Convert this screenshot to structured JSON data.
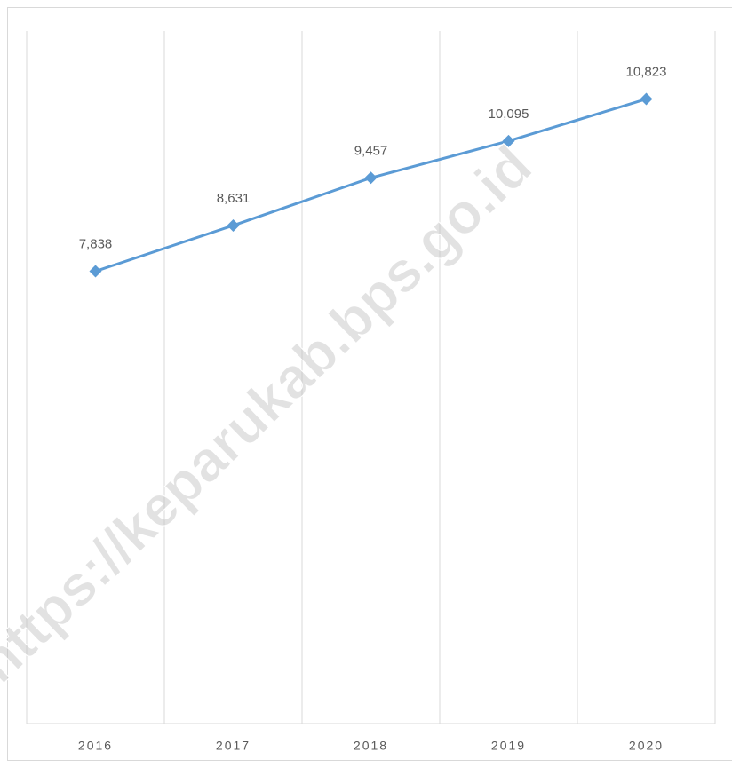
{
  "chart_data": {
    "type": "line",
    "categories": [
      "2016",
      "2017",
      "2018",
      "2019",
      "2020"
    ],
    "series": [
      {
        "color": "#5b9bd5",
        "values": [
          7838,
          8631,
          9457,
          10095,
          10823
        ],
        "value_labels": [
          "7,838",
          "8,631",
          "9,457",
          "10,095",
          "10,823"
        ]
      }
    ],
    "ylim": [
      0,
      12000
    ],
    "grid": true,
    "watermark": "https://keparukab.bps.go.id"
  }
}
